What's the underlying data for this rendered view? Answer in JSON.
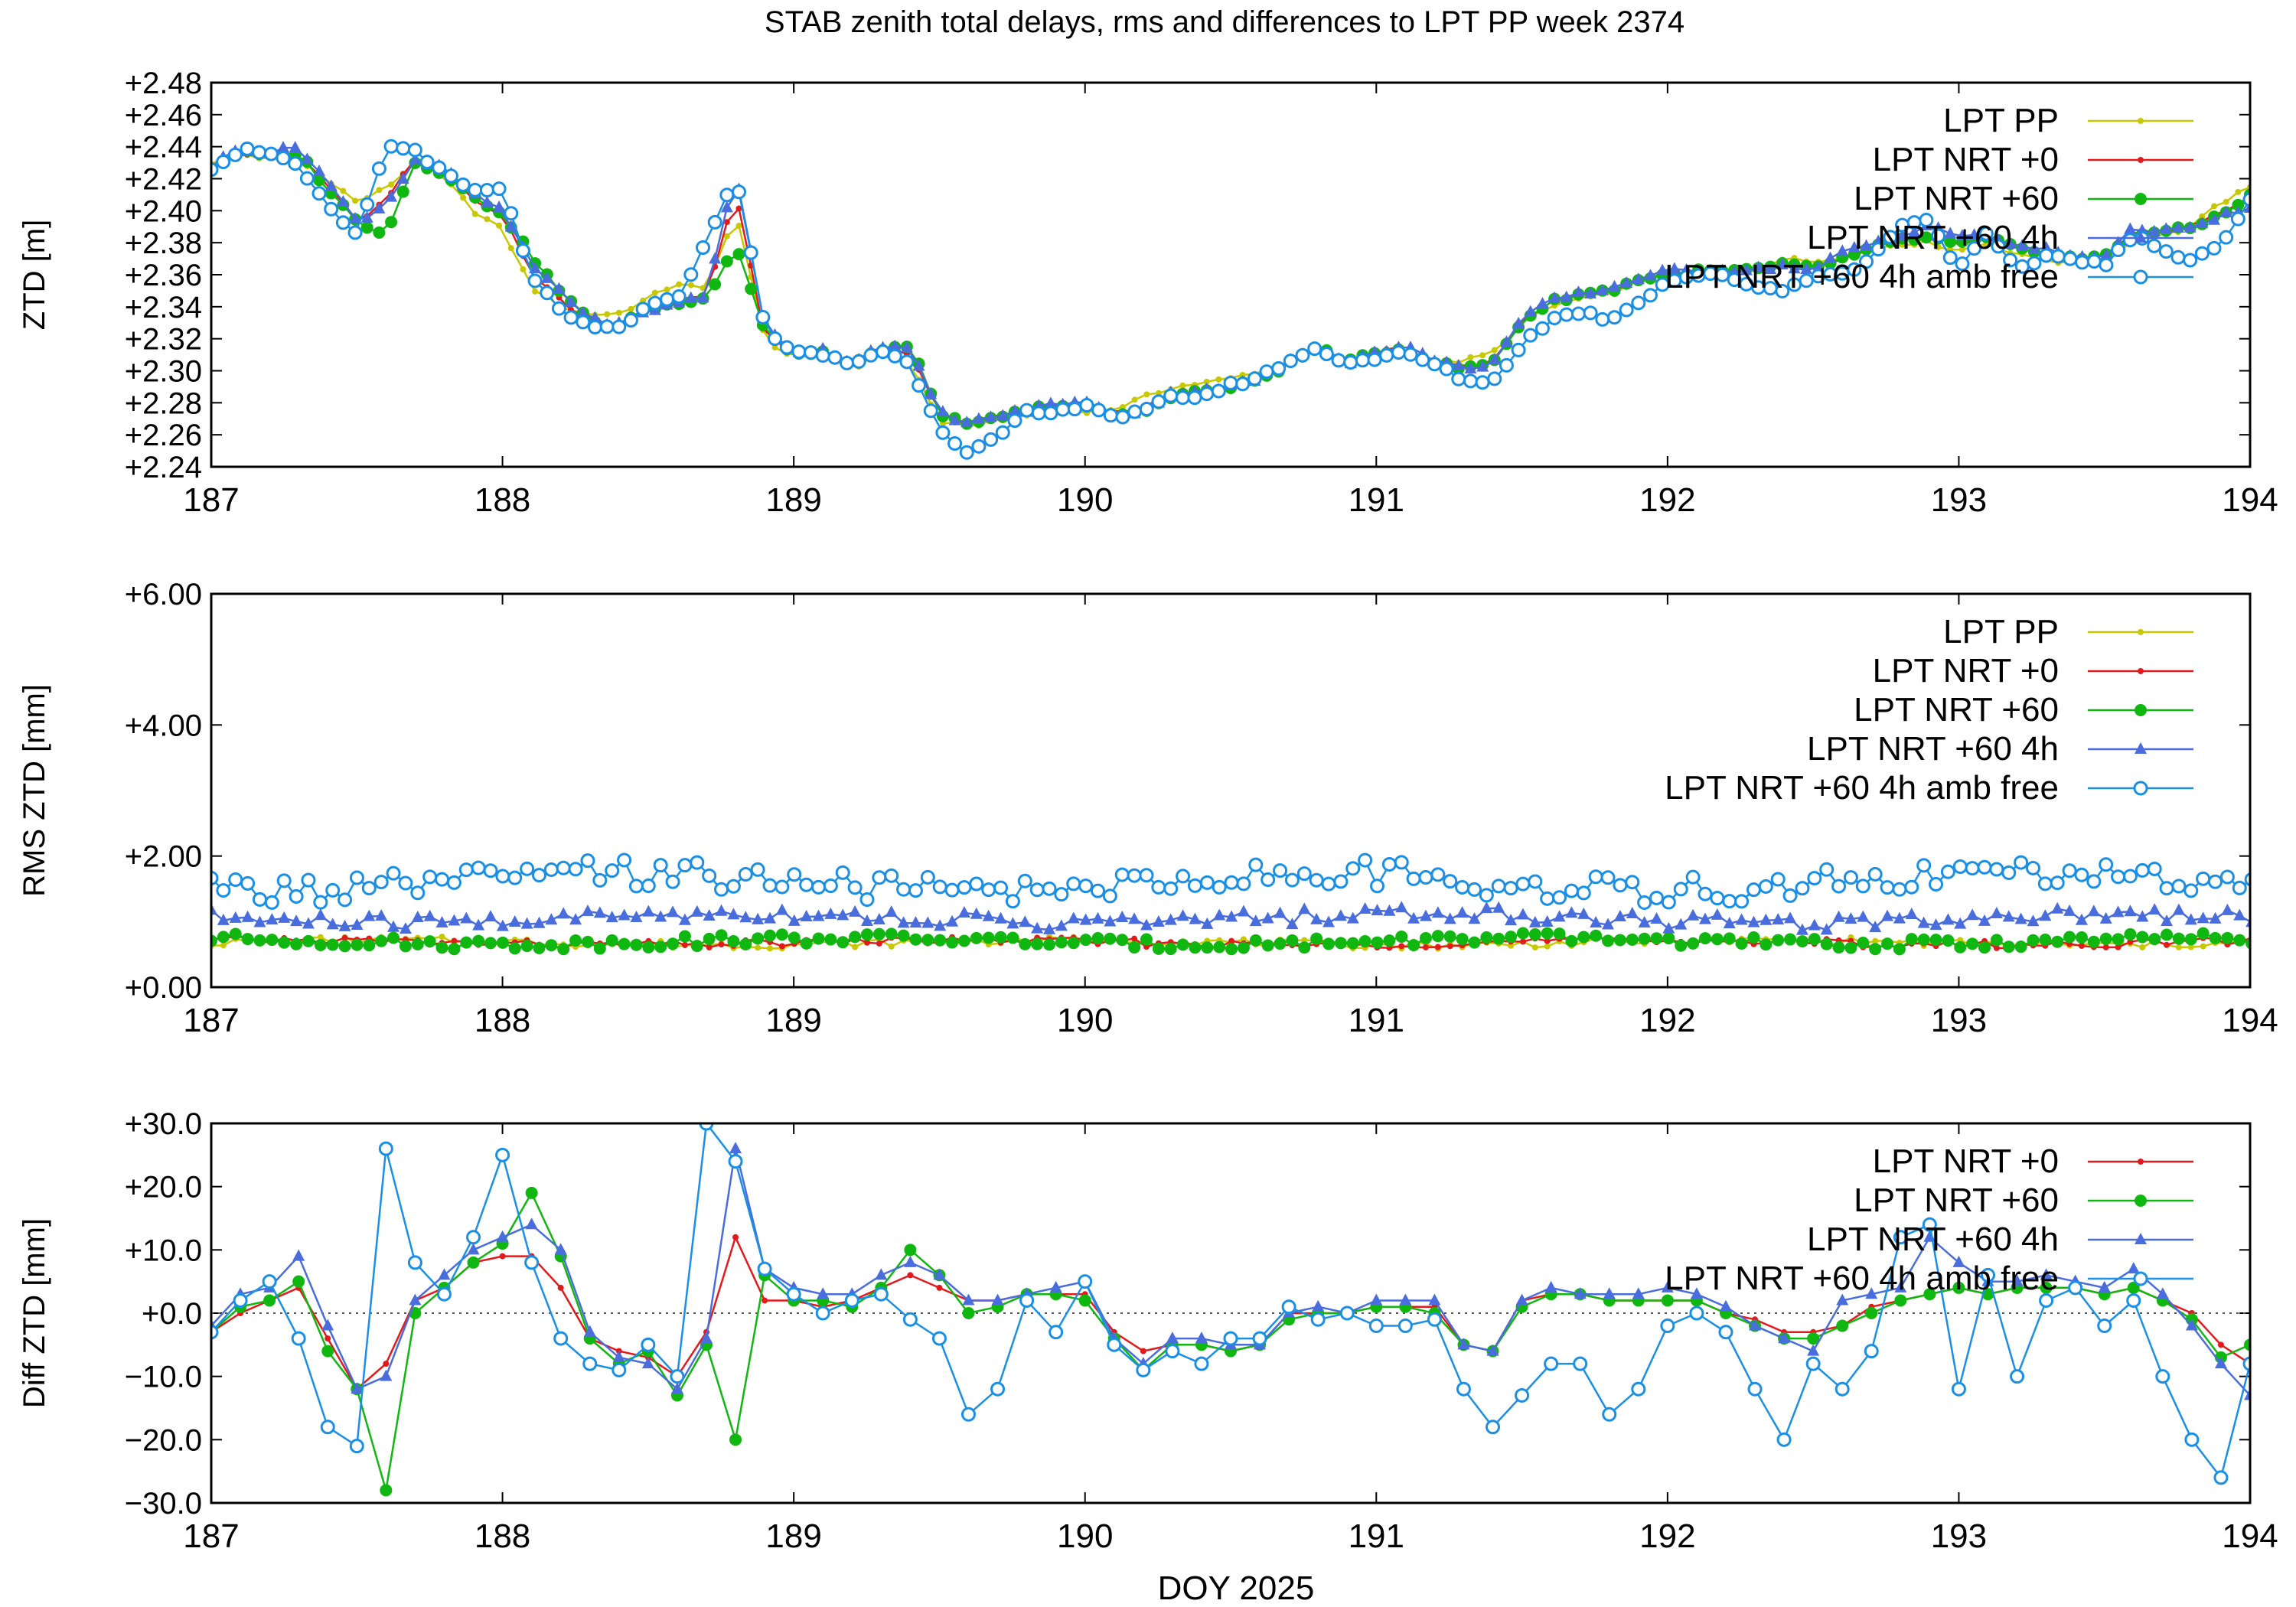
{
  "figure": {
    "title": "STAB zenith total delays, rms and differences to LPT PP week 2374",
    "xlabel": "DOY 2025"
  },
  "styles": {
    "LPT PP": {
      "color": "#c8c800",
      "marker": "dot"
    },
    "LPT NRT +0": {
      "color": "#e31a1c",
      "marker": "dot"
    },
    "LPT NRT +60": {
      "color": "#11b711",
      "marker": "circle-filled"
    },
    "LPT NRT +60 4h": {
      "color": "#4a6ddd",
      "marker": "triangle"
    },
    "LPT NRT +60 4h amb free": {
      "color": "#1a8fe6",
      "marker": "circle-open"
    }
  },
  "chart_data": [
    {
      "type": "line",
      "ylabel": "ZTD [m]",
      "xlim": [
        187,
        194
      ],
      "ylim": [
        2.24,
        2.48
      ],
      "xticks": [
        "187",
        "188",
        "189",
        "190",
        "191",
        "192",
        "193",
        "194"
      ],
      "yticks": [
        "+2.24",
        "+2.26",
        "+2.28",
        "+2.30",
        "+2.32",
        "+2.34",
        "+2.36",
        "+2.38",
        "+2.40",
        "+2.42",
        "+2.44",
        "+2.46",
        "+2.48"
      ],
      "legend": [
        "LPT PP",
        "LPT NRT +0",
        "LPT NRT +60",
        "LPT NRT +60 4h",
        "LPT NRT +60 4h amb free"
      ],
      "legend_position": "top-right",
      "base": {
        "x": [
          187.0,
          187.1,
          187.2,
          187.3,
          187.4,
          187.5,
          187.6,
          187.7,
          187.8,
          187.9,
          188.0,
          188.1,
          188.2,
          188.3,
          188.4,
          188.5,
          188.6,
          188.7,
          188.8,
          188.9,
          189.0,
          189.1,
          189.2,
          189.3,
          189.4,
          189.5,
          189.6,
          189.7,
          189.8,
          189.9,
          190.0,
          190.1,
          190.2,
          190.3,
          190.4,
          190.5,
          190.6,
          190.7,
          190.8,
          190.9,
          191.0,
          191.1,
          191.2,
          191.3,
          191.4,
          191.5,
          191.6,
          191.7,
          191.8,
          191.9,
          192.0,
          192.1,
          192.2,
          192.3,
          192.4,
          192.5,
          192.6,
          192.7,
          192.8,
          192.9,
          193.0,
          193.1,
          193.2,
          193.3,
          193.4,
          193.5,
          193.6,
          193.7,
          193.8,
          193.9,
          194.0
        ],
        "y": [
          2.43,
          2.436,
          2.432,
          2.431,
          2.42,
          2.405,
          2.414,
          2.43,
          2.42,
          2.4,
          2.388,
          2.352,
          2.34,
          2.335,
          2.336,
          2.345,
          2.355,
          2.35,
          2.4,
          2.32,
          2.308,
          2.31,
          2.302,
          2.31,
          2.305,
          2.268,
          2.265,
          2.27,
          2.272,
          2.276,
          2.275,
          2.276,
          2.283,
          2.29,
          2.292,
          2.295,
          2.3,
          2.305,
          2.315,
          2.305,
          2.31,
          2.313,
          2.305,
          2.306,
          2.311,
          2.33,
          2.34,
          2.345,
          2.348,
          2.355,
          2.358,
          2.36,
          2.362,
          2.365,
          2.37,
          2.368,
          2.372,
          2.376,
          2.38,
          2.38,
          2.375,
          2.38,
          2.372,
          2.37,
          2.366,
          2.368,
          2.382,
          2.385,
          2.39,
          2.405,
          2.414
        ]
      },
      "series_offsets_m": {
        "LPT PP": 0.0,
        "LPT NRT +0": "diff series 1 / 1000",
        "LPT NRT +60": "diff series 2 / 1000",
        "LPT NRT +60 4h": "diff series 3 / 1000",
        "LPT NRT +60 4h amb free": "diff series 4 / 1000"
      }
    },
    {
      "type": "line",
      "ylabel": "RMS ZTD [mm]",
      "xlim": [
        187,
        194
      ],
      "ylim": [
        0,
        6
      ],
      "xticks": [
        "187",
        "188",
        "189",
        "190",
        "191",
        "192",
        "193",
        "194"
      ],
      "yticks": [
        "+0.00",
        "+2.00",
        "+4.00",
        "+6.00"
      ],
      "legend": [
        "LPT PP",
        "LPT NRT +0",
        "LPT NRT +60",
        "LPT NRT +60 4h",
        "LPT NRT +60 4h amb free"
      ],
      "legend_position": "top-right",
      "x_start": 187.0,
      "x_step": 0.0417,
      "series": [
        {
          "name": "LPT PP",
          "typical": 0.68,
          "spread": 0.06,
          "min": 0.55,
          "max": 0.85
        },
        {
          "name": "LPT NRT +0",
          "typical": 0.68,
          "spread": 0.06,
          "min": 0.55,
          "max": 0.85
        },
        {
          "name": "LPT NRT +60",
          "typical": 0.7,
          "spread": 0.08,
          "min": 0.58,
          "max": 1.0
        },
        {
          "name": "LPT NRT +60 4h",
          "typical": 1.05,
          "spread": 0.12,
          "min": 0.85,
          "max": 1.6
        },
        {
          "name": "LPT NRT +60 4h amb free",
          "typical": 1.6,
          "spread": 0.22,
          "min": 1.1,
          "max": 2.35
        }
      ]
    },
    {
      "type": "line",
      "ylabel": "Diff ZTD [mm]",
      "xlim": [
        187,
        194
      ],
      "ylim": [
        -30,
        30
      ],
      "xticks": [
        "187",
        "188",
        "189",
        "190",
        "191",
        "192",
        "193",
        "194"
      ],
      "yticks": [
        "−30.0",
        "−20.0",
        "−10.0",
        "+0.0",
        "+10.0",
        "+20.0",
        "+30.0"
      ],
      "zero_line": true,
      "legend": [
        "LPT NRT +0",
        "LPT NRT +60",
        "LPT NRT +60 4h",
        "LPT NRT +60 4h amb free"
      ],
      "legend_position": "top-right",
      "x": [
        187.0,
        187.1,
        187.2,
        187.3,
        187.4,
        187.5,
        187.6,
        187.7,
        187.8,
        187.9,
        188.0,
        188.1,
        188.2,
        188.3,
        188.4,
        188.5,
        188.6,
        188.7,
        188.8,
        188.9,
        189.0,
        189.1,
        189.2,
        189.3,
        189.4,
        189.5,
        189.6,
        189.7,
        189.8,
        189.9,
        190.0,
        190.1,
        190.2,
        190.3,
        190.4,
        190.5,
        190.6,
        190.7,
        190.8,
        190.9,
        191.0,
        191.1,
        191.2,
        191.3,
        191.4,
        191.5,
        191.6,
        191.7,
        191.8,
        191.9,
        192.0,
        192.1,
        192.2,
        192.3,
        192.4,
        192.5,
        192.6,
        192.7,
        192.8,
        192.9,
        193.0,
        193.1,
        193.2,
        193.3,
        193.4,
        193.5,
        193.6,
        193.7,
        193.8,
        193.9,
        194.0
      ],
      "series": [
        {
          "name": "LPT NRT +0",
          "values": [
            -3,
            0,
            2,
            4,
            -4,
            -12,
            -8,
            2,
            4,
            8,
            9,
            9,
            4,
            -4,
            -6,
            -7,
            -10,
            -3,
            12,
            2,
            2,
            1,
            2,
            4,
            6,
            4,
            2,
            2,
            3,
            3,
            3,
            -3,
            -6,
            -5,
            -5,
            -6,
            -5,
            0,
            0,
            0,
            1,
            1,
            1,
            -5,
            -6,
            2,
            3,
            3,
            2,
            2,
            2,
            2,
            0,
            -1,
            -3,
            -3,
            -2,
            1,
            2,
            3,
            4,
            3,
            4,
            4,
            4,
            3,
            4,
            2,
            0,
            -5,
            -8
          ]
        },
        {
          "name": "LPT NRT +60",
          "values": [
            -3,
            1,
            2,
            5,
            -6,
            -12,
            -28,
            0,
            4,
            8,
            11,
            19,
            9,
            -4,
            -8,
            -6,
            -13,
            -5,
            -20,
            6,
            2,
            2,
            1,
            4,
            10,
            6,
            0,
            1,
            3,
            3,
            2,
            -4,
            -9,
            -5,
            -5,
            -6,
            -5,
            -1,
            0,
            0,
            1,
            1,
            0,
            -5,
            -6,
            1,
            3,
            3,
            2,
            2,
            2,
            2,
            0,
            -2,
            -4,
            -4,
            -2,
            0,
            2,
            3,
            4,
            3,
            4,
            4,
            4,
            3,
            4,
            2,
            -1,
            -7,
            -5
          ]
        },
        {
          "name": "LPT NRT +60 4h",
          "values": [
            -2,
            3,
            4,
            9,
            -2,
            -12,
            -10,
            2,
            6,
            10,
            12,
            14,
            10,
            -3,
            -7,
            -8,
            -12,
            -4,
            26,
            7,
            4,
            3,
            3,
            6,
            8,
            6,
            2,
            2,
            3,
            4,
            5,
            -4,
            -8,
            -4,
            -4,
            -5,
            -5,
            0,
            1,
            0,
            2,
            2,
            2,
            -5,
            -6,
            2,
            4,
            3,
            3,
            3,
            4,
            3,
            1,
            -2,
            -4,
            -6,
            2,
            3,
            4,
            12,
            8,
            5,
            5,
            6,
            5,
            4,
            7,
            3,
            -2,
            -8,
            -13
          ]
        },
        {
          "name": "LPT NRT +60 4h amb free",
          "values": [
            -3,
            2,
            5,
            -4,
            -18,
            -21,
            26,
            8,
            3,
            12,
            25,
            8,
            -4,
            -8,
            -9,
            -5,
            -10,
            30,
            24,
            7,
            3,
            0,
            2,
            3,
            -1,
            -4,
            -16,
            -12,
            2,
            -3,
            5,
            -5,
            -9,
            -6,
            -8,
            -4,
            -4,
            1,
            -1,
            0,
            -2,
            -2,
            -1,
            -12,
            -18,
            -13,
            -8,
            -8,
            -16,
            -12,
            -2,
            0,
            -3,
            -12,
            -20,
            -8,
            -12,
            -6,
            12,
            14,
            -12,
            6,
            -10,
            2,
            4,
            -2,
            2,
            -10,
            -20,
            -26,
            -8
          ]
        }
      ]
    }
  ]
}
